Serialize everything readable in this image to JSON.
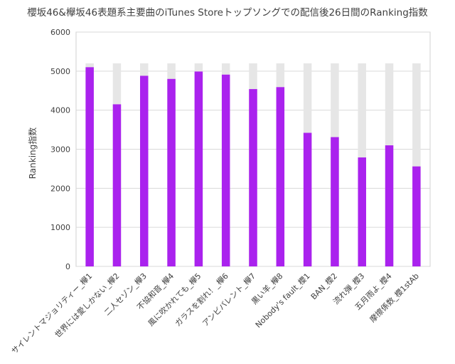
{
  "chart_data": {
    "type": "bar",
    "title": "櫻坂46&欅坂46表題系主要曲のiTunes Storeトップソングでの配信後26日間のRanking指数",
    "xlabel": "",
    "ylabel": "Ranking指数",
    "ylim": [
      0,
      6000
    ],
    "yticks": [
      0,
      1000,
      2000,
      3000,
      4000,
      5000,
      6000
    ],
    "grid": true,
    "categories": [
      "サイレントマジョリティー_欅1",
      "世界には愛しかない_欅2",
      "二人セゾン_欅3",
      "不協和音_欅4",
      "風に吹かれても_欅5",
      "ガラスを割れ！_欅6",
      "アンビバレント_欅7",
      "黒い羊_欅8",
      "Nobody's fault_櫻1",
      "BAN_櫻2",
      "流れ弾_櫻3",
      "五月雨よ_櫻4",
      "摩擦係数_櫻1stAb"
    ],
    "series": [
      {
        "values": [
          5200,
          5200,
          5200,
          5200,
          5200,
          5200,
          5200,
          5200,
          5200,
          5200,
          5200,
          5200,
          5200
        ],
        "color": "#e6e6e6"
      },
      {
        "values": [
          5100,
          4150,
          4880,
          4800,
          4990,
          4910,
          4540,
          4590,
          3420,
          3310,
          2790,
          3100,
          2560
        ],
        "color": "#aa22ee"
      }
    ]
  }
}
